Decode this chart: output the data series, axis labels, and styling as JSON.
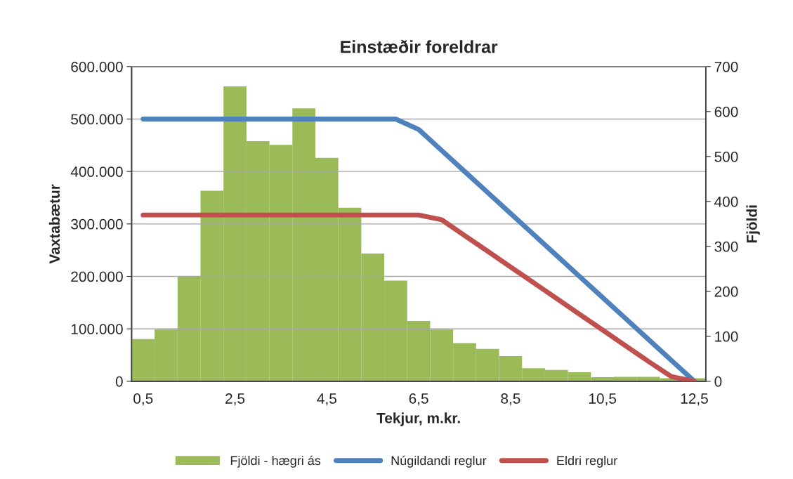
{
  "chart_data": {
    "type": "bar",
    "title": "Einstæðir foreldrar",
    "xlabel": "Tekjur, m.kr.",
    "ylabel": "Vaxtabætur",
    "y2label": "Fjöldi",
    "categories": [
      "0,5",
      null,
      null,
      null,
      "2,5",
      null,
      null,
      null,
      "4,5",
      null,
      null,
      null,
      "6,5",
      null,
      null,
      null,
      "8,5",
      null,
      null,
      null,
      "10,5",
      null,
      null,
      null,
      "12,5"
    ],
    "series": [
      {
        "name": "Fjöldi - hægri ás",
        "axis": "y2",
        "color": "#9bbb59",
        "values": [
          94,
          115,
          234,
          424,
          656,
          534,
          526,
          607,
          497,
          386,
          284,
          224,
          134,
          115,
          85,
          72,
          56,
          29,
          25,
          20,
          9,
          10,
          10,
          7,
          7
        ]
      },
      {
        "name": "Núgildandi reglur",
        "type": "line",
        "color": "#4f81bd",
        "values": [
          500000,
          500000,
          500000,
          500000,
          500000,
          500000,
          500000,
          500000,
          500000,
          500000,
          500000,
          500000,
          480000,
          440000,
          400000,
          360000,
          320000,
          280000,
          240000,
          200000,
          160000,
          120000,
          80000,
          40000,
          0
        ]
      },
      {
        "name": "Eldri reglur",
        "type": "line",
        "color": "#c0504d",
        "values": [
          317000,
          317000,
          317000,
          317000,
          317000,
          317000,
          317000,
          317000,
          317000,
          317000,
          317000,
          317000,
          317000,
          308000,
          278000,
          248000,
          218000,
          188000,
          158000,
          128000,
          98000,
          68000,
          38000,
          9000,
          0
        ]
      }
    ],
    "ylim": [
      0,
      600000
    ],
    "yticks": [
      {
        "value": 0,
        "label": "0"
      },
      {
        "value": 100000,
        "label": "100.000"
      },
      {
        "value": 200000,
        "label": "200.000"
      },
      {
        "value": 300000,
        "label": "300.000"
      },
      {
        "value": 400000,
        "label": "400.000"
      },
      {
        "value": 500000,
        "label": "500.000"
      },
      {
        "value": 600000,
        "label": "600.000"
      }
    ],
    "y2lim": [
      0,
      700
    ],
    "y2ticks": [
      0,
      100,
      200,
      300,
      400,
      500,
      600,
      700
    ],
    "grid": "y",
    "legend": "bottom"
  }
}
